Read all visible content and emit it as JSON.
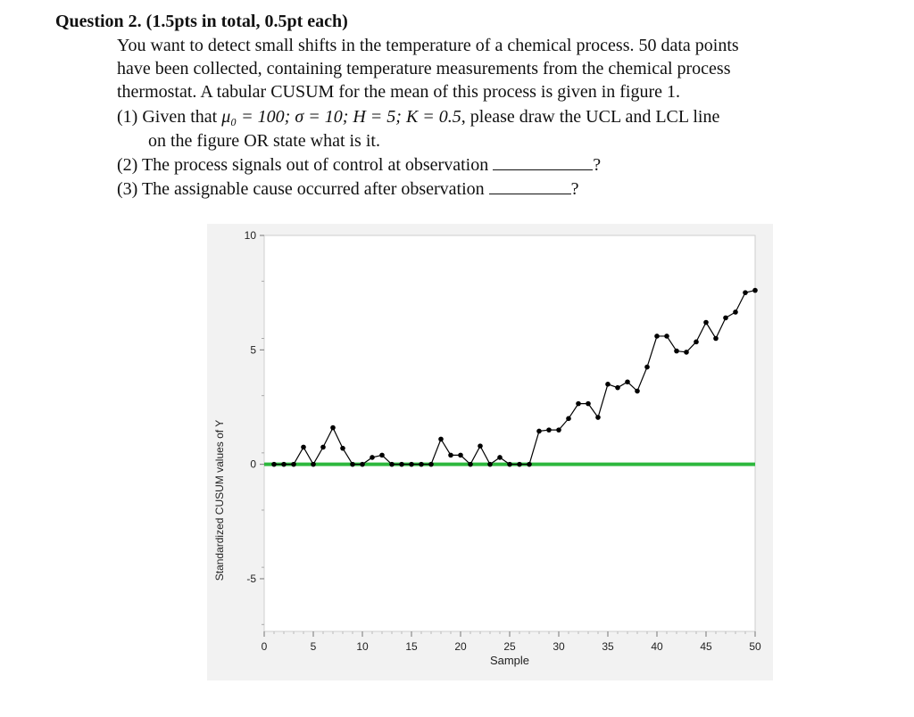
{
  "question": {
    "title": "Question 2. (1.5pts in total, 0.5pt each)",
    "intro": [
      "You want to detect small shifts in the temperature of a chemical process. 50 data points",
      "have been collected, containing temperature measurements from the chemical process",
      "thermostat. A tabular CUSUM for the mean of this process is given in figure 1."
    ],
    "part1_prefix": "(1) Given that ",
    "part1_math": "μ₀ = 100; σ = 10; H = 5; K = 0.5",
    "part1_suffix": ", please draw the UCL and LCL line",
    "part1_line2": "on the figure OR state what is it.",
    "part2_text": "(2) The process signals out of control at observation",
    "part2_end": "?",
    "part3_text": "(3) The assignable cause occurred after observation",
    "part3_end": "?"
  },
  "chart_data": {
    "type": "line",
    "title": "",
    "xlabel": "Sample",
    "ylabel": "Standardized CUSUM values of Y",
    "xlim": [
      0,
      50
    ],
    "ylim": [
      -7.3,
      10
    ],
    "x_ticks": [
      0,
      5,
      10,
      15,
      20,
      25,
      30,
      35,
      40,
      45,
      50
    ],
    "y_ticks": [
      10,
      5,
      0,
      -5
    ],
    "y_tick_labels": [
      "10",
      "5",
      "0",
      "-5"
    ],
    "center_line": {
      "value": 0,
      "color": "#2db83d"
    },
    "series": [
      {
        "name": "CUSUM",
        "color": "#000000",
        "x": [
          1,
          2,
          3,
          4,
          5,
          6,
          7,
          8,
          9,
          10,
          11,
          12,
          13,
          14,
          15,
          16,
          17,
          18,
          19,
          20,
          21,
          22,
          23,
          24,
          25,
          26,
          27,
          28,
          29,
          30,
          31,
          32,
          33,
          34,
          35,
          36,
          37,
          38,
          39,
          40,
          41,
          42,
          43,
          44,
          45,
          46,
          47,
          48,
          49,
          50
        ],
        "values": [
          0,
          0,
          0,
          0.75,
          0,
          0.75,
          1.6,
          0.7,
          0,
          0,
          0.3,
          0.4,
          0,
          0,
          0,
          0,
          0,
          1.1,
          0.4,
          0.4,
          0,
          0.8,
          0,
          0.3,
          0,
          0,
          0,
          1.45,
          1.5,
          1.5,
          2.0,
          2.65,
          2.65,
          2.05,
          3.5,
          3.35,
          3.6,
          3.2,
          4.25,
          5.6,
          5.6,
          4.95,
          4.9,
          5.35,
          6.2,
          5.5,
          6.4,
          6.65,
          7.5,
          7.6
        ]
      }
    ]
  }
}
